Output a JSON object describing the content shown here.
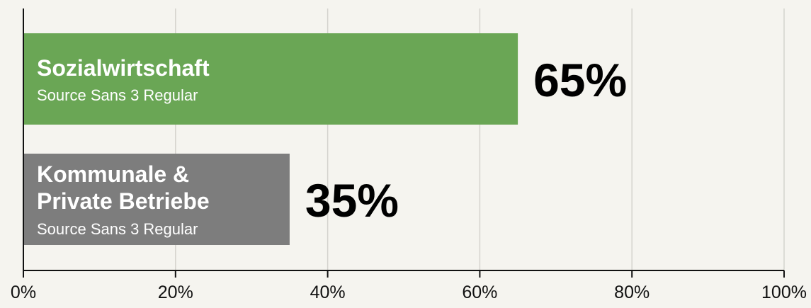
{
  "chart_data": {
    "type": "bar",
    "orientation": "horizontal",
    "xlim": [
      0,
      100
    ],
    "grid": true,
    "x_ticks": [
      "0%",
      "20%",
      "40%",
      "60%",
      "80%",
      "100%"
    ],
    "categories": [
      {
        "name_lines": [
          "Sozialwirtschaft"
        ],
        "sublabel": "Source Sans 3 Regular"
      },
      {
        "name_lines": [
          "Kommunale &",
          "Private Betriebe"
        ],
        "sublabel": "Source Sans 3 Regular"
      }
    ],
    "values": [
      65,
      35
    ],
    "value_labels": [
      "65%",
      "35%"
    ],
    "colors": [
      "#6aa655",
      "#7d7d7d"
    ]
  }
}
